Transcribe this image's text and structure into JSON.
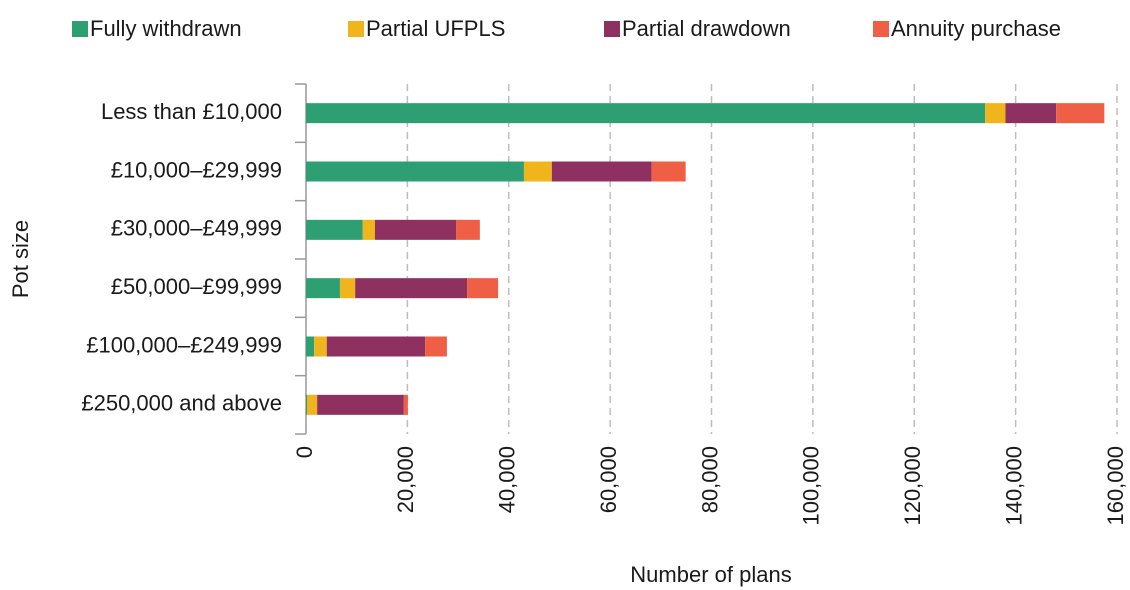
{
  "chart_data": {
    "type": "stacked_bar_horizontal",
    "categories": [
      "Less than £10,000",
      "£10,000–£29,999",
      "£30,000–£49,999",
      "£50,000–£99,999",
      "£100,000–£249,999",
      "£250,000 and above"
    ],
    "series": [
      {
        "name": "Fully withdrawn",
        "color": "#2e9e73",
        "values": [
          134000,
          43000,
          11200,
          6700,
          1600,
          200
        ]
      },
      {
        "name": "Partial UFPLS",
        "color": "#f0b41c",
        "values": [
          4000,
          5500,
          2400,
          3000,
          2500,
          2000
        ]
      },
      {
        "name": "Partial drawdown",
        "color": "#8e3060",
        "values": [
          10000,
          19700,
          16000,
          22100,
          19400,
          17100
        ]
      },
      {
        "name": "Annuity purchase",
        "color": "#ee5f45",
        "values": [
          9500,
          6700,
          4700,
          6100,
          4300,
          800
        ]
      }
    ],
    "xlabel": "Number of plans",
    "ylabel": "Pot size",
    "xlim": [
      0,
      160000
    ],
    "xticks": [
      0,
      {
        "value": 20000,
        "label": "20,000"
      },
      {
        "value": 40000,
        "label": "40,000"
      },
      {
        "value": 60000,
        "label": "60,000"
      },
      {
        "value": 80000,
        "label": "80,000"
      },
      {
        "value": 100000,
        "label": "100,000"
      },
      {
        "value": 120000,
        "label": "120,000"
      },
      {
        "value": 140000,
        "label": "140,000"
      },
      {
        "value": 160000,
        "label": "160,000"
      }
    ],
    "grid": true,
    "legend": "top"
  }
}
